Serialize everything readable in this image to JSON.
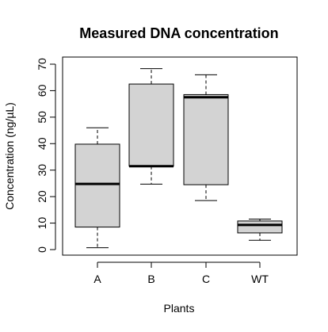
{
  "chart_data": {
    "type": "boxplot",
    "title": "Measured DNA concentration",
    "xlabel": "Plants",
    "ylabel": "Concentration (ng/µL)",
    "ylim": [
      -1,
      71
    ],
    "yticks": [
      0,
      10,
      20,
      30,
      40,
      50,
      60,
      70
    ],
    "grid": false,
    "legend": "none",
    "categories": [
      "A",
      "B",
      "C",
      "WT"
    ],
    "boxes": [
      {
        "category": "A",
        "min": 0.7,
        "q1": 8.5,
        "median": 24.8,
        "q3": 39.8,
        "max": 46.0
      },
      {
        "category": "B",
        "min": 24.7,
        "q1": 31.5,
        "median": 31.5,
        "q3": 62.5,
        "max": 68.3
      },
      {
        "category": "C",
        "min": 18.5,
        "q1": 24.5,
        "median": 57.5,
        "q3": 58.5,
        "max": 66.0
      },
      {
        "category": "WT",
        "min": 3.5,
        "q1": 6.3,
        "median": 9.3,
        "q3": 10.8,
        "max": 11.5
      }
    ],
    "box_fill": "#d3d3d3",
    "line_color": "#000000"
  }
}
